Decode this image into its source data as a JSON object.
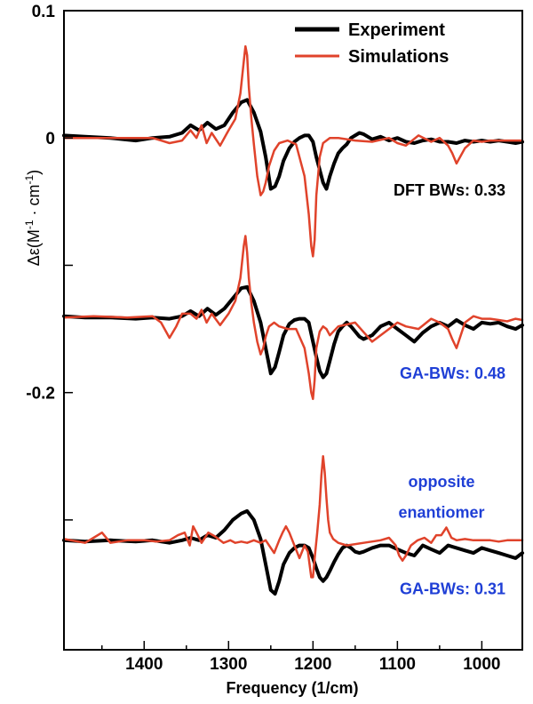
{
  "chart_data": {
    "type": "line",
    "xlabel": "Frequency (1/cm)",
    "ylabel": "Δε(M-1 · cm-1)",
    "xlim": [
      1495,
      952
    ],
    "ylim": [
      -0.402,
      0.1
    ],
    "x_ticks": [
      1400,
      1300,
      1200,
      1100,
      1000
    ],
    "x_tick_labels": [
      "1400",
      "1300",
      "1200",
      "1100",
      "1000"
    ],
    "y_labeled_ticks": [
      0.1,
      0,
      -0.2
    ],
    "y_tick_labels": [
      "0.1",
      "0",
      "-0.2"
    ],
    "y_minor_ticks": [
      -0.1,
      -0.3
    ],
    "x_reversed": true,
    "grid": false,
    "legend_position": "top-right",
    "legend": [
      {
        "label": "Experiment",
        "color": "#000000"
      },
      {
        "label": "Simulations",
        "color": "#e0432b"
      }
    ],
    "annotations": [
      {
        "text": "DFT BWs:  0.33",
        "color": "#000000",
        "x": 1085,
        "y": -0.041
      },
      {
        "text": "GA-BWs:  0.48",
        "color": "#1f3fd6",
        "x": 1085,
        "y": -0.185
      },
      {
        "text": "opposite",
        "color": "#1f3fd6",
        "x": 1080,
        "y": -0.27
      },
      {
        "text": "enantiomer",
        "color": "#1f3fd6",
        "x": 1080,
        "y": -0.294
      },
      {
        "text": "GA-BWs:  0.31",
        "color": "#1f3fd6",
        "x": 1085,
        "y": -0.354
      }
    ],
    "series": [
      {
        "name": "Experiment",
        "color": "#000000",
        "width": 4,
        "traces": [
          {
            "x": [
              1495,
              1470,
              1440,
              1410,
              1390,
              1370,
              1355,
              1345,
              1335,
              1325,
              1315,
              1305,
              1295,
              1285,
              1278,
              1270,
              1262,
              1256,
              1250,
              1245,
              1240,
              1235,
              1228,
              1222,
              1216,
              1210,
              1205,
              1200,
              1196,
              1192,
              1188,
              1184,
              1180,
              1175,
              1170,
              1165,
              1160,
              1155,
              1150,
              1145,
              1140,
              1130,
              1120,
              1110,
              1100,
              1090,
              1080,
              1070,
              1060,
              1050,
              1040,
              1030,
              1020,
              1010,
              1000,
              990,
              980,
              970,
              960,
              952
            ],
            "y": [
              0.002,
              0.001,
              0.0,
              -0.002,
              0.0,
              0.001,
              0.004,
              0.01,
              0.006,
              0.012,
              0.007,
              0.01,
              0.02,
              0.028,
              0.03,
              0.02,
              0.005,
              -0.015,
              -0.04,
              -0.038,
              -0.03,
              -0.018,
              -0.008,
              -0.003,
              0.0,
              0.002,
              0.002,
              -0.003,
              -0.015,
              -0.025,
              -0.035,
              -0.04,
              -0.03,
              -0.02,
              -0.012,
              -0.008,
              -0.005,
              0.0,
              0.002,
              0.004,
              0.003,
              -0.001,
              0.001,
              -0.002,
              0.0,
              -0.003,
              -0.004,
              -0.002,
              -0.001,
              -0.003,
              -0.003,
              -0.004,
              -0.002,
              -0.003,
              -0.002,
              -0.003,
              -0.002,
              -0.003,
              -0.004,
              -0.003
            ]
          },
          {
            "x": [
              1495,
              1470,
              1440,
              1410,
              1390,
              1370,
              1355,
              1345,
              1335,
              1325,
              1315,
              1305,
              1295,
              1285,
              1278,
              1270,
              1262,
              1256,
              1250,
              1245,
              1240,
              1235,
              1228,
              1222,
              1216,
              1210,
              1205,
              1200,
              1196,
              1192,
              1188,
              1184,
              1180,
              1175,
              1170,
              1165,
              1160,
              1155,
              1150,
              1145,
              1140,
              1130,
              1120,
              1110,
              1100,
              1090,
              1080,
              1070,
              1060,
              1050,
              1040,
              1030,
              1020,
              1010,
              1000,
              990,
              980,
              970,
              960,
              952
            ],
            "y": [
              -0.14,
              -0.141,
              -0.141,
              -0.142,
              -0.141,
              -0.142,
              -0.14,
              -0.136,
              -0.14,
              -0.134,
              -0.139,
              -0.134,
              -0.126,
              -0.118,
              -0.117,
              -0.128,
              -0.145,
              -0.165,
              -0.185,
              -0.18,
              -0.168,
              -0.155,
              -0.146,
              -0.143,
              -0.142,
              -0.142,
              -0.145,
              -0.16,
              -0.172,
              -0.183,
              -0.188,
              -0.185,
              -0.175,
              -0.162,
              -0.152,
              -0.148,
              -0.145,
              -0.148,
              -0.152,
              -0.156,
              -0.158,
              -0.155,
              -0.148,
              -0.145,
              -0.15,
              -0.155,
              -0.16,
              -0.153,
              -0.148,
              -0.145,
              -0.148,
              -0.143,
              -0.147,
              -0.15,
              -0.145,
              -0.146,
              -0.145,
              -0.148,
              -0.15,
              -0.147
            ]
          },
          {
            "x": [
              1495,
              1470,
              1440,
              1410,
              1390,
              1370,
              1355,
              1345,
              1335,
              1325,
              1315,
              1305,
              1295,
              1285,
              1278,
              1270,
              1262,
              1256,
              1250,
              1245,
              1240,
              1235,
              1228,
              1222,
              1216,
              1210,
              1205,
              1200,
              1196,
              1192,
              1188,
              1184,
              1180,
              1175,
              1170,
              1165,
              1160,
              1155,
              1150,
              1145,
              1140,
              1130,
              1120,
              1110,
              1100,
              1090,
              1080,
              1070,
              1060,
              1050,
              1040,
              1030,
              1020,
              1010,
              1000,
              990,
              980,
              970,
              960,
              952
            ],
            "y": [
              -0.316,
              -0.317,
              -0.316,
              -0.317,
              -0.316,
              -0.318,
              -0.316,
              -0.314,
              -0.316,
              -0.312,
              -0.314,
              -0.308,
              -0.3,
              -0.295,
              -0.293,
              -0.3,
              -0.315,
              -0.335,
              -0.355,
              -0.358,
              -0.348,
              -0.335,
              -0.326,
              -0.322,
              -0.32,
              -0.32,
              -0.322,
              -0.33,
              -0.338,
              -0.345,
              -0.348,
              -0.345,
              -0.34,
              -0.333,
              -0.327,
              -0.322,
              -0.32,
              -0.322,
              -0.325,
              -0.326,
              -0.325,
              -0.322,
              -0.32,
              -0.32,
              -0.323,
              -0.326,
              -0.328,
              -0.32,
              -0.323,
              -0.326,
              -0.32,
              -0.322,
              -0.324,
              -0.326,
              -0.322,
              -0.324,
              -0.326,
              -0.328,
              -0.33,
              -0.326
            ]
          }
        ]
      },
      {
        "name": "Simulations",
        "color": "#e0432b",
        "width": 2.5,
        "traces": [
          {
            "x": [
              1495,
              1460,
              1420,
              1390,
              1380,
              1370,
              1362,
              1355,
              1345,
              1338,
              1332,
              1326,
              1320,
              1310,
              1300,
              1292,
              1286,
              1282,
              1280,
              1278,
              1276,
              1273,
              1270,
              1266,
              1262,
              1259,
              1256,
              1252,
              1246,
              1240,
              1230,
              1220,
              1210,
              1205,
              1202,
              1200,
              1198,
              1196,
              1192,
              1188,
              1184,
              1180,
              1170,
              1150,
              1130,
              1110,
              1100,
              1090,
              1075,
              1060,
              1050,
              1040,
              1035,
              1030,
              1020,
              1010,
              1000,
              990,
              980,
              970,
              960,
              952
            ],
            "y": [
              0.0,
              0.0,
              0.0,
              0.0,
              -0.002,
              -0.004,
              -0.003,
              -0.002,
              0.006,
              0.0,
              0.01,
              -0.004,
              0.004,
              -0.006,
              0.006,
              0.015,
              0.035,
              0.06,
              0.072,
              0.065,
              0.04,
              0.015,
              -0.005,
              -0.03,
              -0.045,
              -0.042,
              -0.035,
              -0.022,
              -0.01,
              -0.004,
              -0.002,
              -0.005,
              -0.03,
              -0.06,
              -0.085,
              -0.093,
              -0.08,
              -0.045,
              -0.015,
              -0.004,
              -0.002,
              0.0,
              0.0,
              -0.002,
              -0.003,
              0.0,
              -0.004,
              -0.006,
              0.002,
              -0.003,
              0.0,
              -0.006,
              -0.012,
              -0.02,
              -0.008,
              -0.002,
              -0.003,
              -0.002,
              -0.002,
              -0.002,
              -0.002,
              -0.002
            ]
          },
          {
            "x": [
              1495,
              1460,
              1420,
              1390,
              1380,
              1370,
              1362,
              1355,
              1345,
              1338,
              1332,
              1326,
              1320,
              1310,
              1300,
              1292,
              1286,
              1282,
              1280,
              1278,
              1276,
              1273,
              1270,
              1266,
              1262,
              1259,
              1256,
              1252,
              1246,
              1240,
              1230,
              1220,
              1210,
              1205,
              1202,
              1200,
              1198,
              1196,
              1192,
              1188,
              1184,
              1180,
              1170,
              1150,
              1130,
              1110,
              1100,
              1090,
              1075,
              1060,
              1050,
              1040,
              1035,
              1030,
              1020,
              1010,
              1000,
              990,
              980,
              970,
              960,
              952
            ],
            "y": [
              -0.141,
              -0.14,
              -0.141,
              -0.14,
              -0.145,
              -0.157,
              -0.148,
              -0.138,
              -0.138,
              -0.142,
              -0.135,
              -0.145,
              -0.138,
              -0.147,
              -0.138,
              -0.128,
              -0.11,
              -0.085,
              -0.077,
              -0.09,
              -0.11,
              -0.13,
              -0.145,
              -0.16,
              -0.17,
              -0.165,
              -0.156,
              -0.148,
              -0.145,
              -0.148,
              -0.15,
              -0.15,
              -0.165,
              -0.185,
              -0.2,
              -0.205,
              -0.19,
              -0.165,
              -0.152,
              -0.148,
              -0.15,
              -0.155,
              -0.148,
              -0.145,
              -0.16,
              -0.15,
              -0.145,
              -0.148,
              -0.15,
              -0.142,
              -0.145,
              -0.15,
              -0.158,
              -0.165,
              -0.145,
              -0.14,
              -0.142,
              -0.142,
              -0.143,
              -0.144,
              -0.142,
              -0.143
            ]
          },
          {
            "x": [
              1495,
              1470,
              1460,
              1450,
              1440,
              1420,
              1400,
              1385,
              1370,
              1360,
              1352,
              1346,
              1342,
              1338,
              1332,
              1324,
              1316,
              1306,
              1298,
              1292,
              1285,
              1278,
              1270,
              1262,
              1256,
              1252,
              1246,
              1240,
              1236,
              1232,
              1228,
              1222,
              1216,
              1210,
              1206,
              1202,
              1200,
              1198,
              1195,
              1192,
              1190,
              1188,
              1186,
              1184,
              1182,
              1180,
              1176,
              1170,
              1160,
              1140,
              1120,
              1110,
              1102,
              1098,
              1094,
              1090,
              1084,
              1076,
              1068,
              1060,
              1054,
              1048,
              1042,
              1036,
              1030,
              1020,
              1010,
              1000,
              990,
              980,
              970,
              960,
              952
            ],
            "y": [
              -0.315,
              -0.318,
              -0.314,
              -0.31,
              -0.318,
              -0.316,
              -0.316,
              -0.317,
              -0.316,
              -0.312,
              -0.31,
              -0.32,
              -0.305,
              -0.31,
              -0.318,
              -0.31,
              -0.313,
              -0.318,
              -0.316,
              -0.318,
              -0.317,
              -0.318,
              -0.316,
              -0.318,
              -0.316,
              -0.32,
              -0.326,
              -0.316,
              -0.31,
              -0.305,
              -0.31,
              -0.32,
              -0.33,
              -0.32,
              -0.325,
              -0.345,
              -0.345,
              -0.33,
              -0.31,
              -0.288,
              -0.265,
              -0.25,
              -0.263,
              -0.283,
              -0.3,
              -0.31,
              -0.315,
              -0.318,
              -0.32,
              -0.318,
              -0.316,
              -0.314,
              -0.32,
              -0.328,
              -0.332,
              -0.328,
              -0.32,
              -0.316,
              -0.314,
              -0.318,
              -0.312,
              -0.312,
              -0.306,
              -0.314,
              -0.316,
              -0.315,
              -0.316,
              -0.316,
              -0.316,
              -0.317,
              -0.316,
              -0.316,
              -0.316
            ]
          }
        ]
      }
    ]
  }
}
